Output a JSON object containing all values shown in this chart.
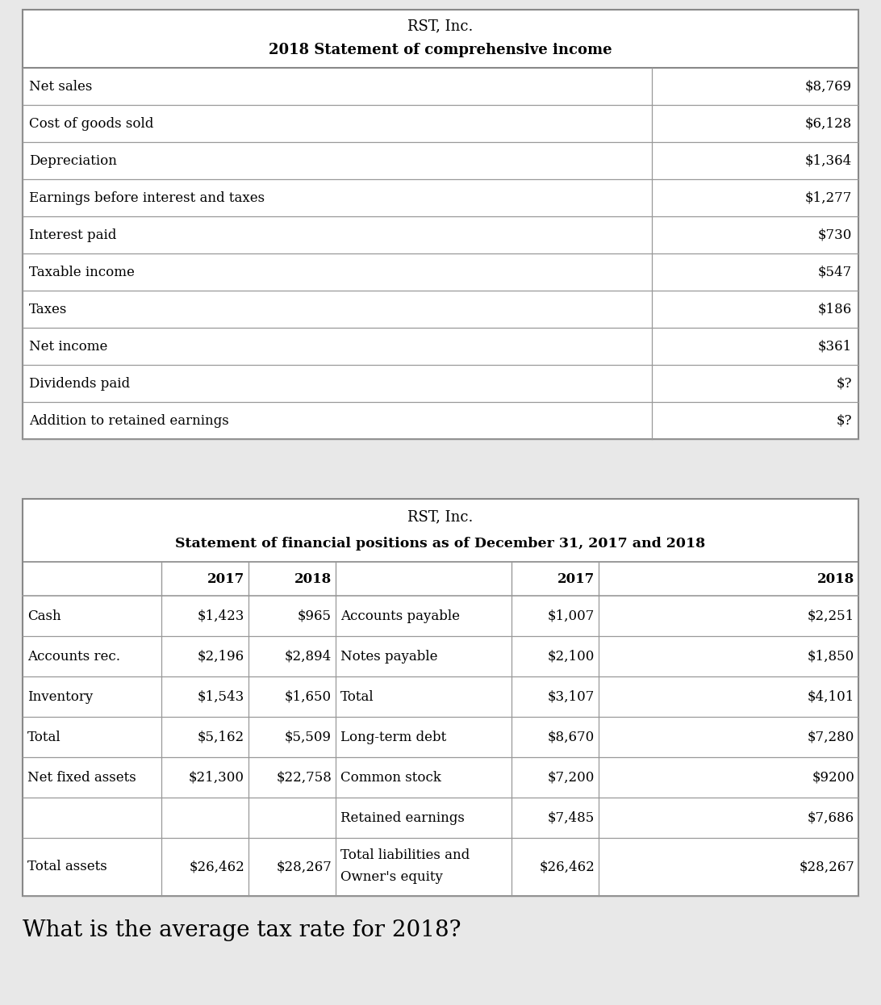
{
  "background_color": "#e8e8e8",
  "table_bg": "#ffffff",
  "border_color": "#888888",
  "text_color": "#000000",
  "income_title1": "RST, Inc.",
  "income_title2": "2018 Statement of comprehensive income",
  "income_rows": [
    [
      "Net sales",
      "$8,769"
    ],
    [
      "Cost of goods sold",
      "$6,128"
    ],
    [
      "Depreciation",
      "$1,364"
    ],
    [
      "Earnings before interest and taxes",
      "$1,277"
    ],
    [
      "Interest paid",
      "$730"
    ],
    [
      "Taxable income",
      "$547"
    ],
    [
      "Taxes",
      "$186"
    ],
    [
      "Net income",
      "$361"
    ],
    [
      "Dividends paid",
      "$?"
    ],
    [
      "Addition to retained earnings",
      "$?"
    ]
  ],
  "balance_title1": "RST, Inc.",
  "balance_title2": "Statement of financial positions as of December 31, 2017 and 2018",
  "balance_left_rows": [
    [
      "Cash",
      "$1,423",
      "$965"
    ],
    [
      "Accounts rec.",
      "$2,196",
      "$2,894"
    ],
    [
      "Inventory",
      "$1,543",
      "$1,650"
    ],
    [
      "Total",
      "$5,162",
      "$5,509"
    ],
    [
      "Net fixed assets",
      "$21,300",
      "$22,758"
    ],
    [
      "",
      "",
      ""
    ],
    [
      "Total assets",
      "$26,462",
      "$28,267"
    ]
  ],
  "balance_right_rows": [
    [
      "Accounts payable",
      "$1,007",
      "$2,251"
    ],
    [
      "Notes payable",
      "$2,100",
      "$1,850"
    ],
    [
      "Total",
      "$3,107",
      "$4,101"
    ],
    [
      "Long-term debt",
      "$8,670",
      "$7,280"
    ],
    [
      "Common stock",
      "$7,200",
      "$9200"
    ],
    [
      "Retained earnings",
      "$7,485",
      "$7,686"
    ],
    [
      "Total liabilities and\nOwner's equity",
      "$26,462",
      "$28,267"
    ]
  ],
  "question_text": "What is the average tax rate for 2018?",
  "question_fontsize": 20
}
